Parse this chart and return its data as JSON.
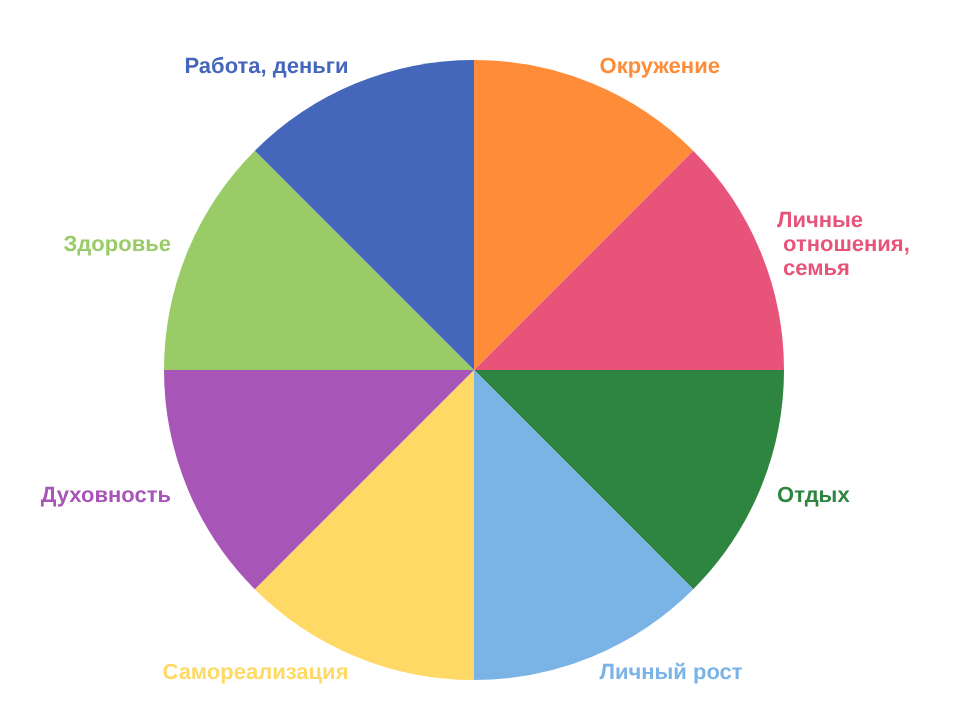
{
  "chart_data": {
    "type": "pie",
    "categories": [
      "Окружение",
      "Личные отношения, семья",
      "Отдых",
      "Личный рост",
      "Самореализация",
      "Духовность",
      "Здоровье",
      "Работа, деньги"
    ],
    "values": [
      12.5,
      12.5,
      12.5,
      12.5,
      12.5,
      12.5,
      12.5,
      12.5
    ],
    "colors": [
      "#ff8c38",
      "#e8537a",
      "#2e8540",
      "#7ab3e6",
      "#ffd966",
      "#a855b8",
      "#99cc66",
      "#4466bb"
    ],
    "legend": false
  }
}
